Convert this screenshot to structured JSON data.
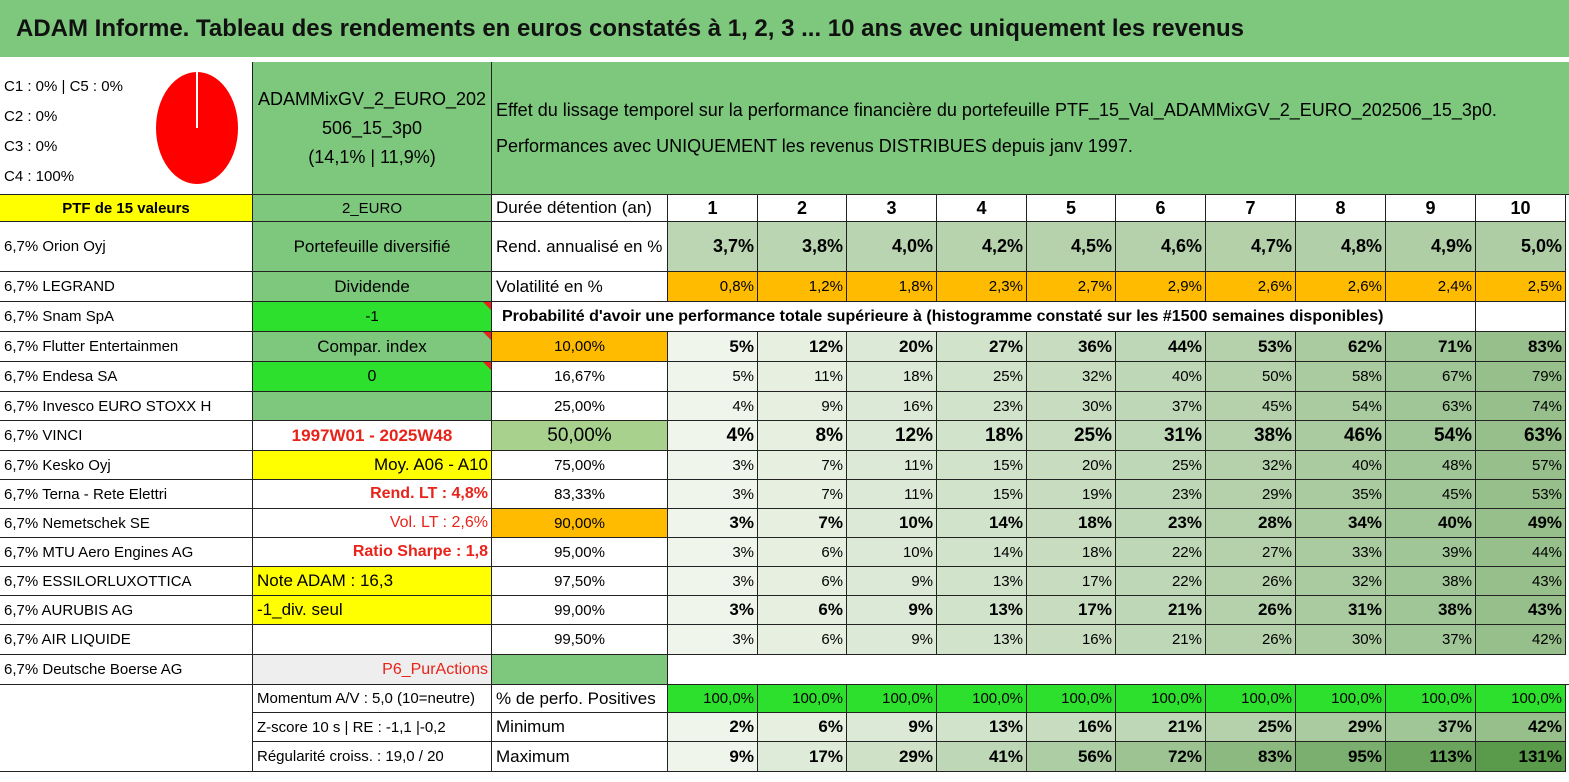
{
  "title": "ADAM Informe. Tableau des rendements en euros constatés à 1, 2, 3 ... 10 ans avec uniquement les revenus",
  "colors": {
    "green": "#7dc87d",
    "lime": "#2ee02e",
    "yellow": "#ffff00",
    "orange": "#ffbb00",
    "red": "#e8231a"
  },
  "allocation": {
    "lines": [
      "C1 : 0% | C5 : 0%",
      "C2 : 0%",
      "C3 : 0%",
      "C4 : 100%"
    ],
    "pie": [
      {
        "label": "C4",
        "value": 100,
        "color": "#ff0000"
      }
    ]
  },
  "fund": {
    "name_line1": "ADAMMixGV_2_EURO_202",
    "name_line2": "506_15_3p0",
    "stats": "(14,1% | 11,9%)"
  },
  "description": {
    "line1": "Effet du lissage temporel sur la performance financière du portefeuille PTF_15_Val_ADAMMixGV_2_EURO_202506_15_3p0.",
    "line2": "Performances avec UNIQUEMENT les revenus DISTRIBUES depuis janv 1997."
  },
  "portfolio_header": "PTF de 15 valeurs",
  "currency_label": "2_EURO",
  "holdings": [
    "6,7% Orion Oyj",
    "6,7% LEGRAND",
    "6,7% Snam SpA",
    "6,7% Flutter Entertainmen",
    "6,7% Endesa SA",
    "6,7% Invesco EURO STOXX H",
    "6,7% VINCI",
    "6,7% Kesko Oyj",
    "6,7% Terna - Rete Elettri",
    "6,7% Nemetschek SE",
    "6,7% MTU Aero Engines AG",
    "6,7% ESSILORLUXOTTICA",
    "6,7% AURUBIS AG",
    "6,7% AIR LIQUIDE",
    "6,7% Deutsche Boerse AG"
  ],
  "info_col": [
    "Portefeuille diversifié",
    "Dividende",
    "-1",
    "Compar. index",
    "0",
    "",
    "1997W01 - 2025W48",
    "Moy. A06 - A10",
    "Rend. LT : 4,8%",
    "Vol. LT : 2,6%",
    "Ratio Sharpe : 1,8",
    "Note ADAM : 16,3",
    "-1_div. seul",
    "",
    "P6_PurActions"
  ],
  "bottom_left": [
    "Momentum A/V : 5,0 (10=neutre)",
    "Z-score 10 s | RE : -1,1 |-0,2",
    "Régularité croiss. : 19,0 / 20"
  ],
  "table": {
    "duration_label": "Durée détention (an)",
    "years": [
      "1",
      "2",
      "3",
      "4",
      "5",
      "6",
      "7",
      "8",
      "9",
      "10"
    ],
    "rend_label": "Rend. annualisé en %",
    "rend": [
      "3,7%",
      "3,8%",
      "4,0%",
      "4,2%",
      "4,5%",
      "4,6%",
      "4,7%",
      "4,8%",
      "4,9%",
      "5,0%"
    ],
    "vol_label": "Volatilité en %",
    "vol": [
      "0,8%",
      "1,2%",
      "1,8%",
      "2,3%",
      "2,7%",
      "2,9%",
      "2,6%",
      "2,6%",
      "2,4%",
      "2,5%"
    ],
    "prob_label": "Probabilité d'avoir une performance totale supérieure à (histogramme constaté sur les #1500 semaines disponibles)",
    "prob_rows": [
      {
        "p": "10,00%",
        "v": [
          "5%",
          "12%",
          "20%",
          "27%",
          "36%",
          "44%",
          "53%",
          "62%",
          "71%",
          "83%"
        ]
      },
      {
        "p": "16,67%",
        "v": [
          "5%",
          "11%",
          "18%",
          "25%",
          "32%",
          "40%",
          "50%",
          "58%",
          "67%",
          "79%"
        ]
      },
      {
        "p": "25,00%",
        "v": [
          "4%",
          "9%",
          "16%",
          "23%",
          "30%",
          "37%",
          "45%",
          "54%",
          "63%",
          "74%"
        ]
      },
      {
        "p": "50,00%",
        "v": [
          "4%",
          "8%",
          "12%",
          "18%",
          "25%",
          "31%",
          "38%",
          "46%",
          "54%",
          "63%"
        ]
      },
      {
        "p": "75,00%",
        "v": [
          "3%",
          "7%",
          "11%",
          "15%",
          "20%",
          "25%",
          "32%",
          "40%",
          "48%",
          "57%"
        ]
      },
      {
        "p": "83,33%",
        "v": [
          "3%",
          "7%",
          "11%",
          "15%",
          "19%",
          "23%",
          "29%",
          "35%",
          "45%",
          "53%"
        ]
      },
      {
        "p": "90,00%",
        "v": [
          "3%",
          "7%",
          "10%",
          "14%",
          "18%",
          "23%",
          "28%",
          "34%",
          "40%",
          "49%"
        ]
      },
      {
        "p": "95,00%",
        "v": [
          "3%",
          "6%",
          "10%",
          "14%",
          "18%",
          "22%",
          "27%",
          "33%",
          "39%",
          "44%"
        ]
      },
      {
        "p": "97,50%",
        "v": [
          "3%",
          "6%",
          "9%",
          "13%",
          "17%",
          "22%",
          "26%",
          "32%",
          "38%",
          "43%"
        ]
      },
      {
        "p": "99,00%",
        "v": [
          "3%",
          "6%",
          "9%",
          "13%",
          "17%",
          "21%",
          "26%",
          "31%",
          "38%",
          "43%"
        ]
      },
      {
        "p": "99,50%",
        "v": [
          "3%",
          "6%",
          "9%",
          "13%",
          "16%",
          "21%",
          "26%",
          "30%",
          "37%",
          "42%"
        ]
      }
    ],
    "pos_label": "% de perfo. Positives",
    "pos": [
      "100,0%",
      "100,0%",
      "100,0%",
      "100,0%",
      "100,0%",
      "100,0%",
      "100,0%",
      "100,0%",
      "100,0%",
      "100,0%"
    ],
    "min_label": "Minimum",
    "min": [
      "2%",
      "6%",
      "9%",
      "13%",
      "16%",
      "21%",
      "25%",
      "29%",
      "37%",
      "42%"
    ],
    "max_label": "Maximum",
    "max": [
      "9%",
      "17%",
      "29%",
      "41%",
      "56%",
      "72%",
      "83%",
      "95%",
      "113%",
      "131%"
    ]
  }
}
